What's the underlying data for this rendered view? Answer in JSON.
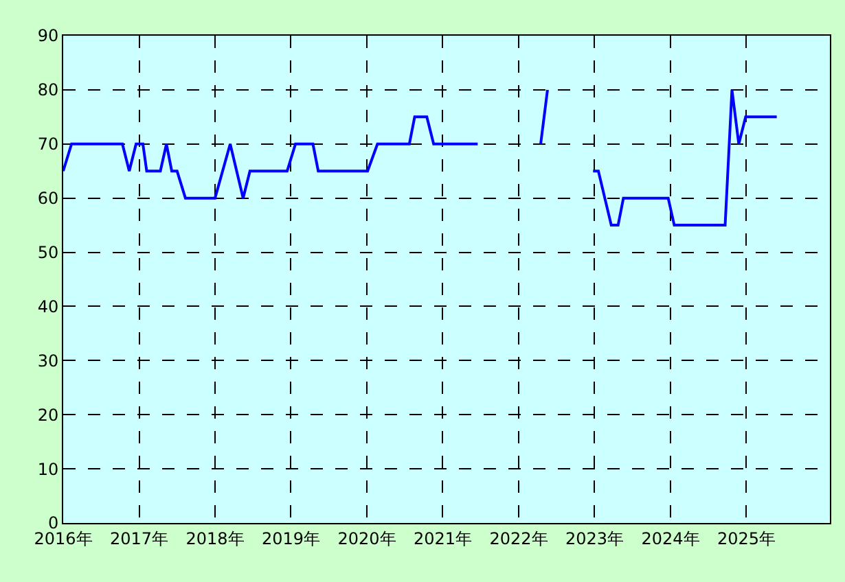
{
  "chart_data": {
    "type": "line",
    "x": [
      2016.0,
      2016.11,
      2016.78,
      2016.87,
      2016.96,
      2017.05,
      2017.1,
      2017.28,
      2017.36,
      2017.43,
      2017.5,
      2017.61,
      2018.0,
      2018.2,
      2018.37,
      2018.46,
      2018.95,
      2019.06,
      2019.29,
      2019.36,
      2020.01,
      2020.14,
      2020.56,
      2020.63,
      2020.79,
      2020.88,
      2021.46,
      2021.9,
      2022.29,
      2022.38,
      2022.7,
      2022.98,
      2023.05,
      2023.22,
      2023.31,
      2023.38,
      2023.97,
      2024.05,
      2024.72,
      2024.81,
      2024.9,
      2024.99,
      2025.4
    ],
    "series": [
      {
        "color": "#0000ff",
        "values": [
          65,
          70,
          70,
          65,
          70,
          70,
          65,
          65,
          70,
          65,
          65,
          60,
          60,
          70,
          60,
          65,
          65,
          70,
          70,
          65,
          65,
          70,
          70,
          75,
          75,
          70,
          70,
          null,
          70,
          80,
          null,
          65,
          65,
          55,
          55,
          60,
          60,
          55,
          55,
          80,
          70,
          75,
          75
        ]
      }
    ],
    "xlim": [
      2016,
      2026.1
    ],
    "xticks": [
      {
        "value": 2016,
        "label": "2016年"
      },
      {
        "value": 2017,
        "label": "2017年"
      },
      {
        "value": 2018,
        "label": "2018年"
      },
      {
        "value": 2019,
        "label": "2019年"
      },
      {
        "value": 2020,
        "label": "2020年"
      },
      {
        "value": 2021,
        "label": "2021年"
      },
      {
        "value": 2022,
        "label": "2022年"
      },
      {
        "value": 2023,
        "label": "2023年"
      },
      {
        "value": 2024,
        "label": "2024年"
      },
      {
        "value": 2025,
        "label": "2025年"
      }
    ],
    "ylim": [
      0,
      90
    ],
    "yticks": [
      0,
      10,
      20,
      30,
      40,
      50,
      60,
      70,
      80,
      90
    ],
    "grid": true,
    "line_style": "solid",
    "marker": "none"
  }
}
